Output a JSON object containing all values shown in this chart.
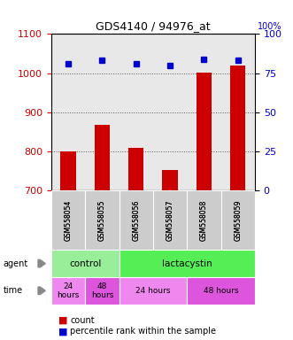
{
  "title": "GDS4140 / 94976_at",
  "samples": [
    "GSM558054",
    "GSM558055",
    "GSM558056",
    "GSM558057",
    "GSM558058",
    "GSM558059"
  ],
  "counts": [
    800,
    868,
    808,
    753,
    1002,
    1020
  ],
  "percentiles": [
    81,
    83,
    81,
    80,
    84,
    83
  ],
  "ylim_left": [
    700,
    1100
  ],
  "ylim_right": [
    0,
    100
  ],
  "yticks_left": [
    700,
    800,
    900,
    1000,
    1100
  ],
  "yticks_right": [
    0,
    25,
    50,
    75,
    100
  ],
  "bar_color": "#cc0000",
  "dot_color": "#0000cc",
  "agent_groups": [
    {
      "label": "control",
      "span": [
        0,
        2
      ],
      "color": "#99ee99"
    },
    {
      "label": "lactacystin",
      "span": [
        2,
        6
      ],
      "color": "#55ee55"
    }
  ],
  "time_groups": [
    {
      "label": "24\nhours",
      "span": [
        0,
        1
      ],
      "color": "#ee88ee"
    },
    {
      "label": "48\nhours",
      "span": [
        1,
        2
      ],
      "color": "#dd55dd"
    },
    {
      "label": "24 hours",
      "span": [
        2,
        4
      ],
      "color": "#ee88ee"
    },
    {
      "label": "48 hours",
      "span": [
        4,
        6
      ],
      "color": "#dd55dd"
    }
  ],
  "legend_count_color": "#cc0000",
  "legend_dot_color": "#0000cc",
  "grid_color": "#555555",
  "ylabel_left_color": "#cc0000",
  "ylabel_right_color": "#0000cc",
  "bg_color": "#e8e8e8",
  "sample_bg": "#cccccc",
  "figsize": [
    3.31,
    3.84
  ],
  "dpi": 100
}
